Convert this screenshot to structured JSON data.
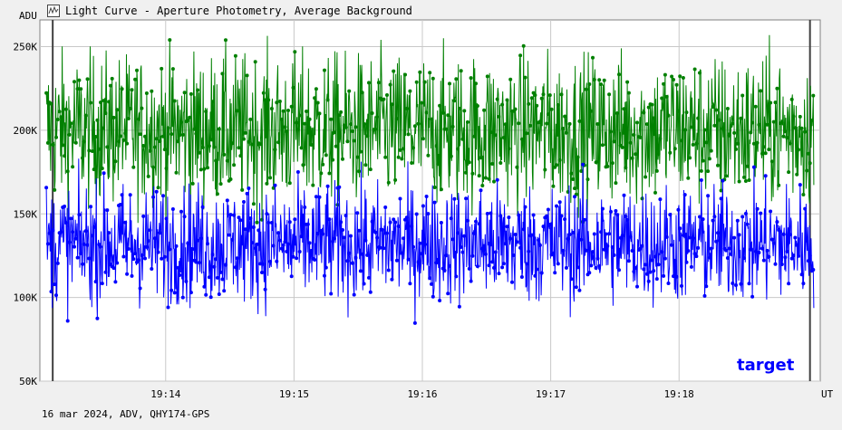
{
  "window": {
    "title": "Light Curve - Aperture Photometry, Average Background",
    "icon": "light-curve-app-icon"
  },
  "footer": "16 mar 2024, ADV, QHY174-GPS",
  "colors": {
    "background": "#f0f0f0",
    "plot_bg": "#ffffff",
    "grid": "#c8c8c8",
    "comparison": "#008000",
    "target": "#0000ff"
  },
  "chart_data": {
    "type": "line",
    "title": "Light Curve - Aperture Photometry, Average Background",
    "xlabel": "UT",
    "ylabel": "ADU",
    "x_ticks": [
      "19:14",
      "19:15",
      "19:16",
      "19:17",
      "19:18"
    ],
    "x_tick_minutes": [
      14,
      15,
      16,
      17,
      18
    ],
    "xlim_minutes": [
      13.02,
      19.1
    ],
    "y_ticks": [
      "50K",
      "100K",
      "150K",
      "200K",
      "250K"
    ],
    "y_tick_values": [
      50000,
      100000,
      150000,
      200000,
      250000
    ],
    "ylim": [
      50000,
      266000
    ],
    "grid": true,
    "series": [
      {
        "name": "",
        "color": "#008000",
        "n_points": 1400,
        "mean": 200000,
        "range": [
          130000,
          272000
        ],
        "description_kind": "noisy comparison-star curve"
      },
      {
        "name": "target",
        "color": "#0000ff",
        "n_points": 1400,
        "mean": 132000,
        "range": [
          72000,
          185000
        ],
        "description_kind": "noisy target-star curve"
      }
    ]
  }
}
